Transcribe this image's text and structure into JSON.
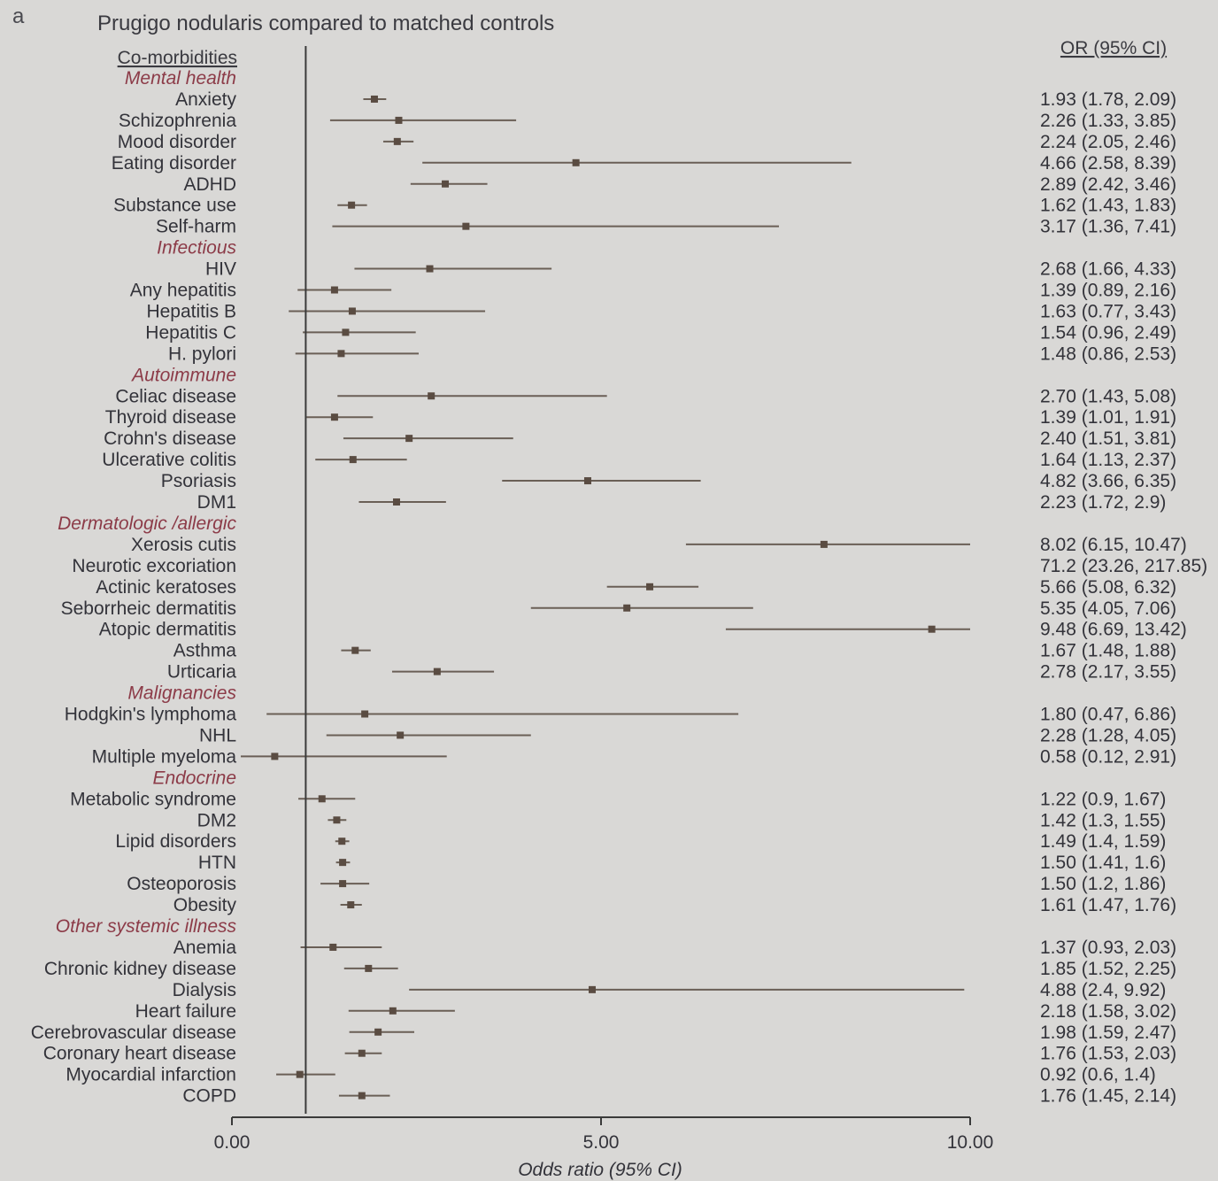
{
  "panel_label": "a",
  "chart_data": {
    "type": "forest",
    "title": "Prugigo nodularis compared to matched controls",
    "section_label": "Co-morbidities",
    "ci_header": "OR (95% CI)",
    "xlabel": "Odds ratio (95% CI)",
    "xlim": [
      0,
      10
    ],
    "xticks": [
      {
        "value": 0,
        "label": "0.00"
      },
      {
        "value": 5,
        "label": "5.00"
      },
      {
        "value": 10,
        "label": "10.00"
      }
    ],
    "reference_line": 1,
    "rows": [
      {
        "kind": "category",
        "label": "Mental health"
      },
      {
        "kind": "item",
        "label": "Anxiety",
        "or": 1.93,
        "lo": 1.78,
        "hi": 2.09,
        "text": "1.93 (1.78, 2.09)"
      },
      {
        "kind": "item",
        "label": "Schizophrenia",
        "or": 2.26,
        "lo": 1.33,
        "hi": 3.85,
        "text": "2.26 (1.33, 3.85)"
      },
      {
        "kind": "item",
        "label": "Mood disorder",
        "or": 2.24,
        "lo": 2.05,
        "hi": 2.46,
        "text": "2.24 (2.05, 2.46)"
      },
      {
        "kind": "item",
        "label": "Eating disorder",
        "or": 4.66,
        "lo": 2.58,
        "hi": 8.39,
        "text": "4.66 (2.58, 8.39)"
      },
      {
        "kind": "item",
        "label": "ADHD",
        "or": 2.89,
        "lo": 2.42,
        "hi": 3.46,
        "text": "2.89 (2.42, 3.46)"
      },
      {
        "kind": "item",
        "label": "Substance use",
        "or": 1.62,
        "lo": 1.43,
        "hi": 1.83,
        "text": "1.62 (1.43, 1.83)"
      },
      {
        "kind": "item",
        "label": "Self-harm",
        "or": 3.17,
        "lo": 1.36,
        "hi": 7.41,
        "text": "3.17 (1.36, 7.41)"
      },
      {
        "kind": "category",
        "label": "Infectious"
      },
      {
        "kind": "item",
        "label": "HIV",
        "or": 2.68,
        "lo": 1.66,
        "hi": 4.33,
        "text": "2.68 (1.66, 4.33)"
      },
      {
        "kind": "item",
        "label": "Any hepatitis",
        "or": 1.39,
        "lo": 0.89,
        "hi": 2.16,
        "text": "1.39 (0.89, 2.16)"
      },
      {
        "kind": "item",
        "label": "Hepatitis B",
        "or": 1.63,
        "lo": 0.77,
        "hi": 3.43,
        "text": "1.63 (0.77, 3.43)"
      },
      {
        "kind": "item",
        "label": "Hepatitis C",
        "or": 1.54,
        "lo": 0.96,
        "hi": 2.49,
        "text": "1.54 (0.96, 2.49)"
      },
      {
        "kind": "item",
        "label": "H. pylori",
        "or": 1.48,
        "lo": 0.86,
        "hi": 2.53,
        "text": "1.48 (0.86, 2.53)"
      },
      {
        "kind": "category",
        "label": "Autoimmune"
      },
      {
        "kind": "item",
        "label": "Celiac disease",
        "or": 2.7,
        "lo": 1.43,
        "hi": 5.08,
        "text": "2.70 (1.43, 5.08)"
      },
      {
        "kind": "item",
        "label": "Thyroid disease",
        "or": 1.39,
        "lo": 1.01,
        "hi": 1.91,
        "text": "1.39 (1.01, 1.91)"
      },
      {
        "kind": "item",
        "label": "Crohn's disease",
        "or": 2.4,
        "lo": 1.51,
        "hi": 3.81,
        "text": "2.40 (1.51, 3.81)"
      },
      {
        "kind": "item",
        "label": "Ulcerative colitis",
        "or": 1.64,
        "lo": 1.13,
        "hi": 2.37,
        "text": "1.64 (1.13, 2.37)"
      },
      {
        "kind": "item",
        "label": "Psoriasis",
        "or": 4.82,
        "lo": 3.66,
        "hi": 6.35,
        "text": "4.82 (3.66, 6.35)"
      },
      {
        "kind": "item",
        "label": "DM1",
        "or": 2.23,
        "lo": 1.72,
        "hi": 2.9,
        "text": "2.23 (1.72, 2.9)"
      },
      {
        "kind": "category",
        "label": "Dermatologic /allergic"
      },
      {
        "kind": "item",
        "label": "Xerosis cutis",
        "or": 8.02,
        "lo": 6.15,
        "hi": 10.47,
        "text": "8.02 (6.15, 10.47)"
      },
      {
        "kind": "item",
        "label": "Neurotic excoriation",
        "or": 71.2,
        "lo": 23.26,
        "hi": 217.85,
        "text": "71.2 (23.26, 217.85)"
      },
      {
        "kind": "item",
        "label": "Actinic keratoses",
        "or": 5.66,
        "lo": 5.08,
        "hi": 6.32,
        "text": "5.66 (5.08, 6.32)"
      },
      {
        "kind": "item",
        "label": "Seborrheic dermatitis",
        "or": 5.35,
        "lo": 4.05,
        "hi": 7.06,
        "text": "5.35 (4.05, 7.06)"
      },
      {
        "kind": "item",
        "label": "Atopic dermatitis",
        "or": 9.48,
        "lo": 6.69,
        "hi": 13.42,
        "text": "9.48 (6.69, 13.42)"
      },
      {
        "kind": "item",
        "label": "Asthma",
        "or": 1.67,
        "lo": 1.48,
        "hi": 1.88,
        "text": "1.67 (1.48, 1.88)"
      },
      {
        "kind": "item",
        "label": "Urticaria",
        "or": 2.78,
        "lo": 2.17,
        "hi": 3.55,
        "text": "2.78 (2.17, 3.55)"
      },
      {
        "kind": "category",
        "label": "Malignancies"
      },
      {
        "kind": "item",
        "label": "Hodgkin's lymphoma",
        "or": 1.8,
        "lo": 0.47,
        "hi": 6.86,
        "text": "1.80 (0.47, 6.86)"
      },
      {
        "kind": "item",
        "label": "NHL",
        "or": 2.28,
        "lo": 1.28,
        "hi": 4.05,
        "text": "2.28 (1.28, 4.05)"
      },
      {
        "kind": "item",
        "label": "Multiple myeloma",
        "or": 0.58,
        "lo": 0.12,
        "hi": 2.91,
        "text": "0.58 (0.12, 2.91)"
      },
      {
        "kind": "category",
        "label": "Endocrine"
      },
      {
        "kind": "item",
        "label": "Metabolic syndrome",
        "or": 1.22,
        "lo": 0.9,
        "hi": 1.67,
        "text": "1.22 (0.9, 1.67)"
      },
      {
        "kind": "item",
        "label": "DM2",
        "or": 1.42,
        "lo": 1.3,
        "hi": 1.55,
        "text": "1.42 (1.3, 1.55)"
      },
      {
        "kind": "item",
        "label": "Lipid disorders",
        "or": 1.49,
        "lo": 1.4,
        "hi": 1.59,
        "text": "1.49 (1.4, 1.59)"
      },
      {
        "kind": "item",
        "label": "HTN",
        "or": 1.5,
        "lo": 1.41,
        "hi": 1.6,
        "text": "1.50 (1.41, 1.6)"
      },
      {
        "kind": "item",
        "label": "Osteoporosis",
        "or": 1.5,
        "lo": 1.2,
        "hi": 1.86,
        "text": "1.50 (1.2, 1.86)"
      },
      {
        "kind": "item",
        "label": "Obesity",
        "or": 1.61,
        "lo": 1.47,
        "hi": 1.76,
        "text": "1.61 (1.47, 1.76)"
      },
      {
        "kind": "category",
        "label": "Other systemic illness"
      },
      {
        "kind": "item",
        "label": "Anemia",
        "or": 1.37,
        "lo": 0.93,
        "hi": 2.03,
        "text": "1.37 (0.93, 2.03)"
      },
      {
        "kind": "item",
        "label": "Chronic kidney disease",
        "or": 1.85,
        "lo": 1.52,
        "hi": 2.25,
        "text": "1.85 (1.52, 2.25)"
      },
      {
        "kind": "item",
        "label": "Dialysis",
        "or": 4.88,
        "lo": 2.4,
        "hi": 9.92,
        "text": "4.88 (2.4, 9.92)"
      },
      {
        "kind": "item",
        "label": "Heart failure",
        "or": 2.18,
        "lo": 1.58,
        "hi": 3.02,
        "text": "2.18 (1.58, 3.02)"
      },
      {
        "kind": "item",
        "label": "Cerebrovascular disease",
        "or": 1.98,
        "lo": 1.59,
        "hi": 2.47,
        "text": "1.98 (1.59, 2.47)"
      },
      {
        "kind": "item",
        "label": "Coronary heart disease",
        "or": 1.76,
        "lo": 1.53,
        "hi": 2.03,
        "text": "1.76 (1.53, 2.03)"
      },
      {
        "kind": "item",
        "label": "Myocardial infarction",
        "or": 0.92,
        "lo": 0.6,
        "hi": 1.4,
        "text": "0.92 (0.6, 1.4)"
      },
      {
        "kind": "item",
        "label": "COPD",
        "or": 1.76,
        "lo": 1.45,
        "hi": 2.14,
        "text": "1.76 (1.45, 2.14)"
      }
    ]
  }
}
